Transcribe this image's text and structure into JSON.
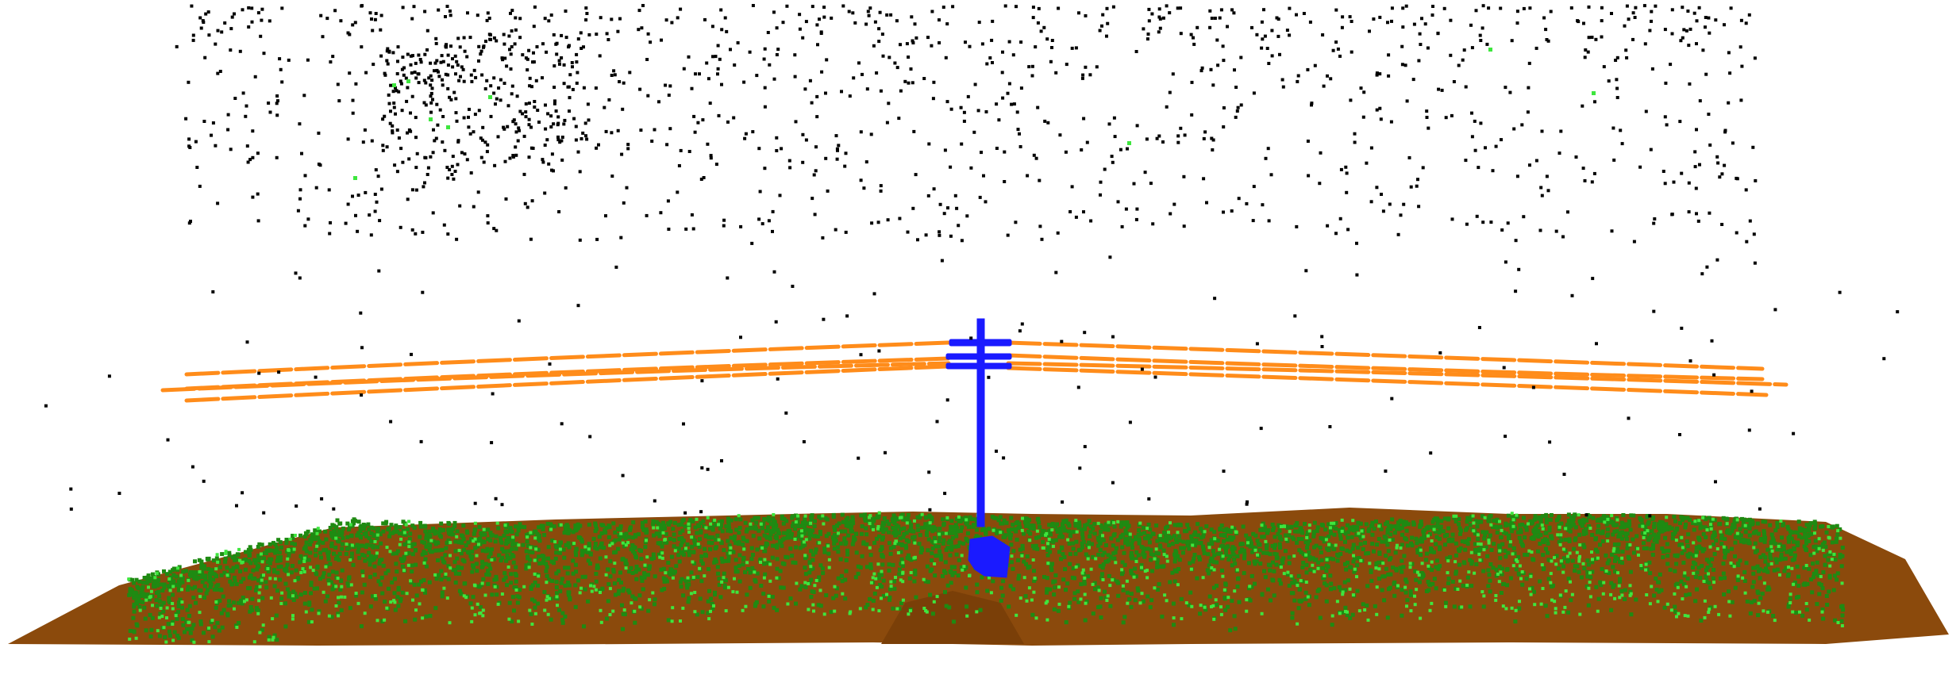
{
  "scene": {
    "description_hidden": false,
    "colors": {
      "background": "#ffffff",
      "noise": "#000000",
      "ground": "#8b4a0c",
      "vegetation_dark": "#1f8a12",
      "vegetation_light": "#3ee63e",
      "wires": "#ff8c1a",
      "pole": "#1a1aff"
    },
    "classes": [
      "ground",
      "low-vegetation",
      "high-vegetation",
      "power-line",
      "pole",
      "unclassified-noise"
    ]
  }
}
